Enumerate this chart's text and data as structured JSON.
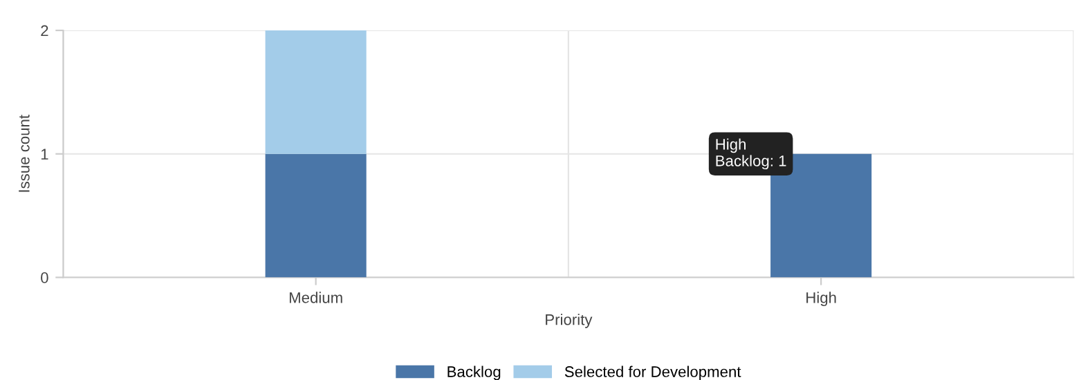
{
  "chart_data": {
    "type": "bar",
    "stacked": true,
    "xlabel": "Priority",
    "ylabel": "Issue count",
    "categories": [
      "Medium",
      "High"
    ],
    "series": [
      {
        "name": "Backlog",
        "color": "#4a76a8",
        "values": [
          1,
          1
        ]
      },
      {
        "name": "Selected for Development",
        "color": "#a3cce9",
        "values": [
          1,
          0
        ]
      }
    ],
    "ylim": [
      0,
      2
    ],
    "yticks": [
      0,
      1,
      2
    ],
    "grid": true,
    "legend": "bottom",
    "annotations": [
      {
        "text": "High\nBacklog: 1",
        "x": "High",
        "y": 1
      }
    ]
  }
}
